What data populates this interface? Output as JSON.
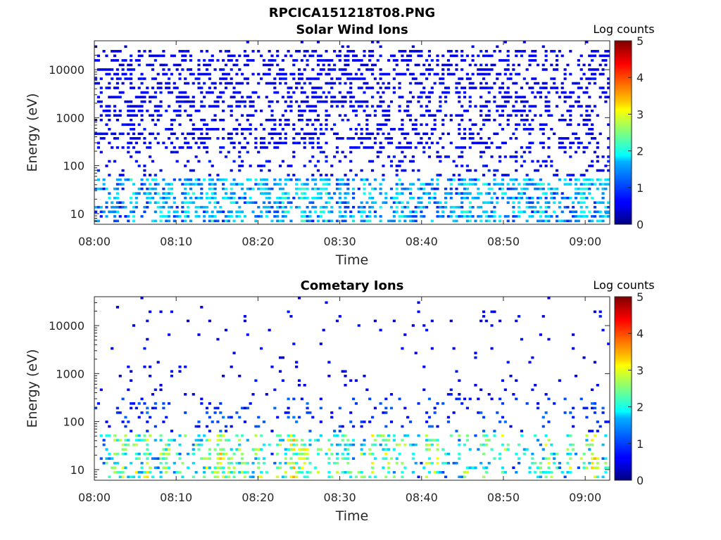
{
  "page": {
    "filename_title": "RPCICA151218T08.PNG"
  },
  "chart_data": [
    {
      "type": "heatmap",
      "title": "Solar Wind Ions",
      "xlabel": "Time",
      "ylabel": "Energy (eV)",
      "x_range": [
        "08:00",
        "09:03"
      ],
      "x_ticks": [
        "08:00",
        "08:10",
        "08:20",
        "08:30",
        "08:40",
        "08:50",
        "09:00"
      ],
      "y_scale": "log",
      "y_range": [
        6,
        40000
      ],
      "y_ticks": [
        "10",
        "100",
        "1000",
        "10000"
      ],
      "colorbar": {
        "label": "Log counts",
        "range": [
          0,
          5
        ],
        "ticks": [
          "0",
          "1",
          "2",
          "3",
          "4",
          "5"
        ],
        "colormap": "jet"
      },
      "intensity_profile": {
        "below_100_eV": "up to ~2 log counts in vertical bursts",
        "above_100_eV": "sparse 0-0.5 log counts"
      }
    },
    {
      "type": "heatmap",
      "title": "Cometary Ions",
      "xlabel": "Time",
      "ylabel": "Energy (eV)",
      "x_range": [
        "08:00",
        "09:03"
      ],
      "x_ticks": [
        "08:00",
        "08:10",
        "08:20",
        "08:30",
        "08:40",
        "08:50",
        "09:00"
      ],
      "y_scale": "log",
      "y_range": [
        6,
        40000
      ],
      "y_ticks": [
        "10",
        "100",
        "1000",
        "10000"
      ],
      "colorbar": {
        "label": "Log counts",
        "range": [
          0,
          5
        ],
        "ticks": [
          "0",
          "1",
          "2",
          "3",
          "4",
          "5"
        ],
        "colormap": "jet"
      },
      "intensity_profile": {
        "below_100_eV": "bursts reaching ~3.5 log counts",
        "above_100_eV": "very sparse 0-0.5 log counts"
      }
    }
  ]
}
